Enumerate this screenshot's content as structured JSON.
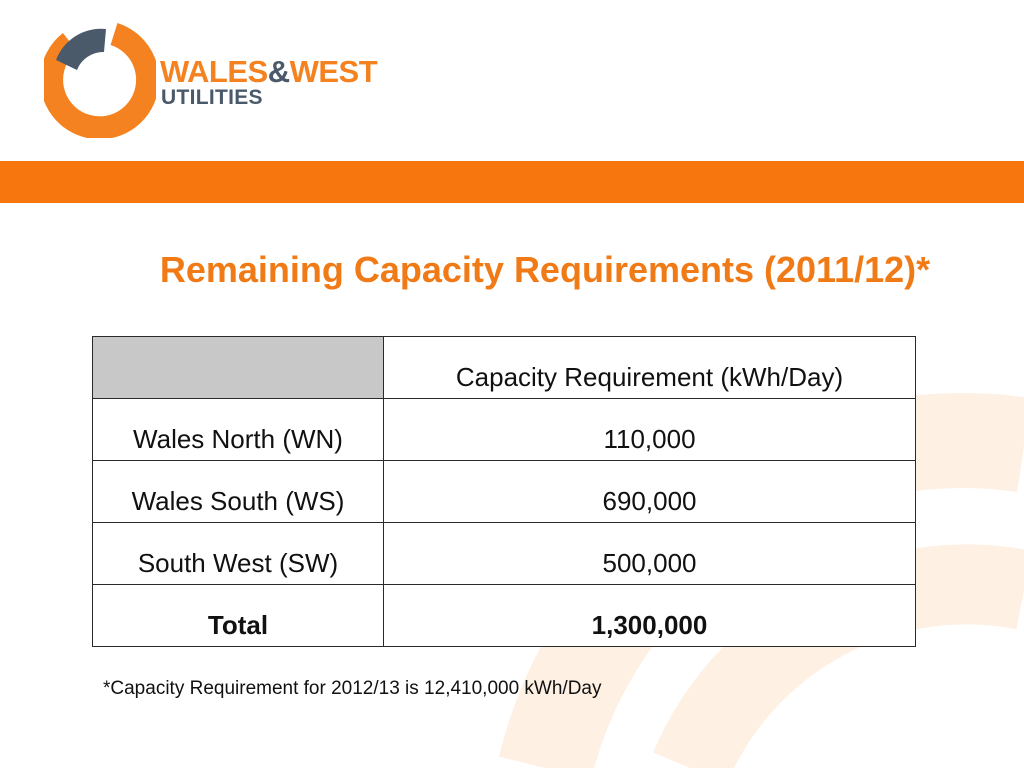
{
  "logo": {
    "brand_part1": "WALES",
    "brand_amp": "&",
    "brand_part2": "WEST",
    "brand_line2": "UTILITIES"
  },
  "colors": {
    "accent_orange": "#f7760d",
    "title_orange": "#f07a16",
    "logo_grey": "#4a5a6a",
    "header_cell_grey": "#c8c8c8"
  },
  "title": "Remaining Capacity Requirements (2011/12)*",
  "table": {
    "header": "Capacity Requirement (kWh/Day)",
    "rows": [
      {
        "region": "Wales North (WN)",
        "value": "110,000"
      },
      {
        "region": "Wales South (WS)",
        "value": "690,000"
      },
      {
        "region": "South West (SW)",
        "value": "500,000"
      }
    ],
    "total": {
      "label": "Total",
      "value": "1,300,000"
    }
  },
  "footnote": "*Capacity Requirement for 2012/13 is 12,410,000 kWh/Day"
}
